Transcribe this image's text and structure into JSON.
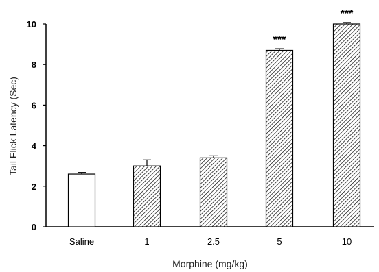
{
  "chart_data": {
    "type": "bar",
    "title": "",
    "xlabel": "Morphine (mg/kg)",
    "ylabel": "Tail Flick Latency (Sec)",
    "ylim": [
      0,
      10
    ],
    "yticks": [
      "0",
      "2",
      "4",
      "6",
      "8",
      "10"
    ],
    "categories": [
      "Saline",
      "1",
      "2.5",
      "5",
      "10"
    ],
    "values": [
      2.6,
      3.0,
      3.4,
      8.7,
      10.0
    ],
    "errors": [
      0.08,
      0.3,
      0.1,
      0.08,
      0.07
    ],
    "significance": [
      "",
      "",
      "",
      "***",
      "***"
    ],
    "fills": [
      "open",
      "hatched",
      "hatched",
      "hatched",
      "hatched"
    ],
    "grid": false,
    "legend": "none"
  }
}
